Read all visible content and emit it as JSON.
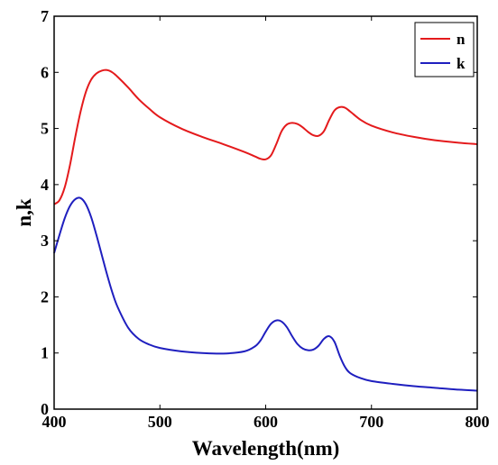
{
  "chart_data": {
    "type": "line",
    "xlabel": "Wavelength(nm)",
    "ylabel": "n,k",
    "xlim": [
      400,
      800
    ],
    "ylim": [
      0,
      7
    ],
    "xticks": [
      "400",
      "500",
      "600",
      "700",
      "800"
    ],
    "yticks": [
      "0",
      "1",
      "2",
      "3",
      "4",
      "5",
      "6",
      "7"
    ],
    "grid": false,
    "legend_position": "top-right",
    "series": [
      {
        "name": "n",
        "color": "#e41a1c",
        "x": [
          400,
          405,
          410,
          415,
          420,
          425,
          430,
          435,
          440,
          445,
          450,
          455,
          460,
          470,
          480,
          490,
          500,
          520,
          540,
          560,
          580,
          590,
          595,
          600,
          605,
          610,
          615,
          620,
          625,
          630,
          635,
          640,
          645,
          650,
          655,
          660,
          665,
          670,
          675,
          680,
          690,
          700,
          720,
          740,
          760,
          780,
          800
        ],
        "y": [
          3.65,
          3.72,
          3.95,
          4.35,
          4.85,
          5.3,
          5.65,
          5.87,
          5.98,
          6.03,
          6.04,
          6.0,
          5.92,
          5.73,
          5.52,
          5.35,
          5.2,
          5.0,
          4.85,
          4.72,
          4.58,
          4.5,
          4.46,
          4.45,
          4.52,
          4.72,
          4.95,
          5.07,
          5.1,
          5.08,
          5.02,
          4.94,
          4.88,
          4.87,
          4.95,
          5.15,
          5.32,
          5.38,
          5.37,
          5.3,
          5.15,
          5.05,
          4.93,
          4.85,
          4.79,
          4.75,
          4.72
        ]
      },
      {
        "name": "k",
        "color": "#1f1fbf",
        "x": [
          400,
          405,
          410,
          415,
          420,
          425,
          430,
          435,
          440,
          445,
          450,
          455,
          460,
          470,
          480,
          490,
          500,
          520,
          540,
          560,
          580,
          590,
          595,
          600,
          605,
          610,
          615,
          620,
          625,
          630,
          635,
          640,
          645,
          650,
          655,
          660,
          665,
          670,
          675,
          680,
          690,
          700,
          720,
          740,
          760,
          780,
          800
        ],
        "y": [
          2.78,
          3.1,
          3.4,
          3.62,
          3.74,
          3.76,
          3.65,
          3.42,
          3.1,
          2.75,
          2.4,
          2.08,
          1.82,
          1.45,
          1.25,
          1.15,
          1.09,
          1.03,
          1.0,
          0.99,
          1.03,
          1.12,
          1.22,
          1.38,
          1.52,
          1.58,
          1.56,
          1.46,
          1.3,
          1.16,
          1.08,
          1.05,
          1.06,
          1.13,
          1.25,
          1.3,
          1.2,
          0.95,
          0.75,
          0.64,
          0.55,
          0.5,
          0.45,
          0.41,
          0.38,
          0.35,
          0.33
        ]
      }
    ]
  }
}
